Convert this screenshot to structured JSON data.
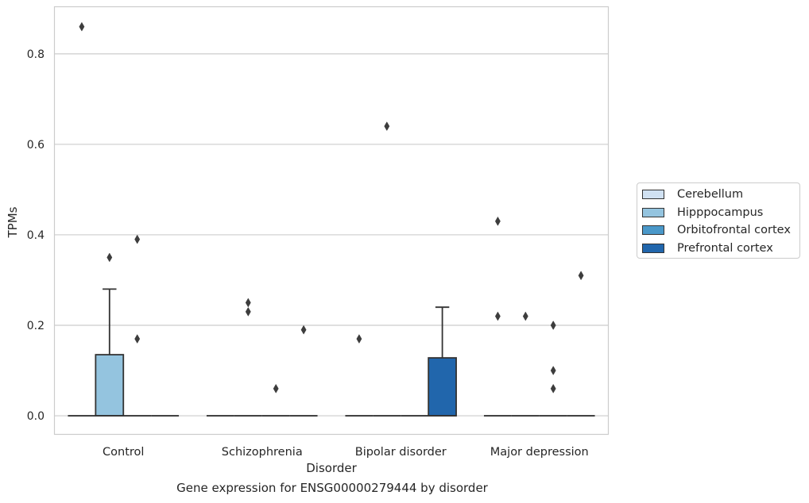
{
  "chart_data": {
    "type": "box",
    "xlabel": "Disorder",
    "ylabel": "TPMs",
    "caption": "Gene expression for ENSG00000279444 by disorder",
    "categories": [
      "Control",
      "Schizophrenia",
      "Bipolar disorder",
      "Major depression"
    ],
    "ylim": [
      -0.042,
      0.905
    ],
    "yticks": [
      0.0,
      0.2,
      0.4,
      0.6,
      0.8
    ],
    "ytick_labels": [
      "0.0",
      "0.2",
      "0.4",
      "0.6",
      "0.8"
    ],
    "grid": true,
    "legend_position": "right, outside",
    "series": [
      {
        "name": "Cerebellum",
        "color": "#d0e1f2",
        "boxes": [
          {
            "q1": 0,
            "median": 0,
            "q3": 0,
            "whisker_low": 0,
            "whisker_high": 0,
            "outliers": [
              0.86
            ]
          },
          {
            "q1": 0,
            "median": 0,
            "q3": 0,
            "whisker_low": 0,
            "whisker_high": 0,
            "outliers": []
          },
          {
            "q1": 0,
            "median": 0,
            "q3": 0,
            "whisker_low": 0,
            "whisker_high": 0,
            "outliers": [
              0.17
            ]
          },
          {
            "q1": 0,
            "median": 0,
            "q3": 0,
            "whisker_low": 0,
            "whisker_high": 0,
            "outliers": [
              0.43,
              0.22
            ]
          }
        ]
      },
      {
        "name": "Hipppocampus",
        "color": "#94c4df",
        "boxes": [
          {
            "q1": 0,
            "median": 0,
            "q3": 0.135,
            "whisker_low": 0,
            "whisker_high": 0.28,
            "outliers": [
              0.35
            ]
          },
          {
            "q1": 0,
            "median": 0,
            "q3": 0,
            "whisker_low": 0,
            "whisker_high": 0,
            "outliers": [
              0.25,
              0.23
            ]
          },
          {
            "q1": 0,
            "median": 0,
            "q3": 0,
            "whisker_low": 0,
            "whisker_high": 0,
            "outliers": [
              0.64
            ]
          },
          {
            "q1": 0,
            "median": 0,
            "q3": 0,
            "whisker_low": 0,
            "whisker_high": 0,
            "outliers": [
              0.22
            ]
          }
        ]
      },
      {
        "name": "Orbitofrontal cortex",
        "color": "#4a98c9",
        "boxes": [
          {
            "q1": 0,
            "median": 0,
            "q3": 0,
            "whisker_low": 0,
            "whisker_high": 0,
            "outliers": [
              0.39,
              0.17
            ]
          },
          {
            "q1": 0,
            "median": 0,
            "q3": 0,
            "whisker_low": 0,
            "whisker_high": 0,
            "outliers": [
              0.06
            ]
          },
          {
            "q1": 0,
            "median": 0,
            "q3": 0,
            "whisker_low": 0,
            "whisker_high": 0,
            "outliers": []
          },
          {
            "q1": 0,
            "median": 0,
            "q3": 0,
            "whisker_low": 0,
            "whisker_high": 0,
            "outliers": [
              0.2,
              0.1,
              0.06
            ]
          }
        ]
      },
      {
        "name": "Prefrontal cortex",
        "color": "#2166ac",
        "boxes": [
          {
            "q1": 0,
            "median": 0,
            "q3": 0,
            "whisker_low": 0,
            "whisker_high": 0,
            "outliers": []
          },
          {
            "q1": 0,
            "median": 0,
            "q3": 0,
            "whisker_low": 0,
            "whisker_high": 0,
            "outliers": [
              0.19
            ]
          },
          {
            "q1": 0,
            "median": 0,
            "q3": 0.128,
            "whisker_low": 0,
            "whisker_high": 0.24,
            "outliers": []
          },
          {
            "q1": 0,
            "median": 0,
            "q3": 0,
            "whisker_low": 0,
            "whisker_high": 0,
            "outliers": [
              0.31
            ]
          }
        ]
      }
    ]
  }
}
